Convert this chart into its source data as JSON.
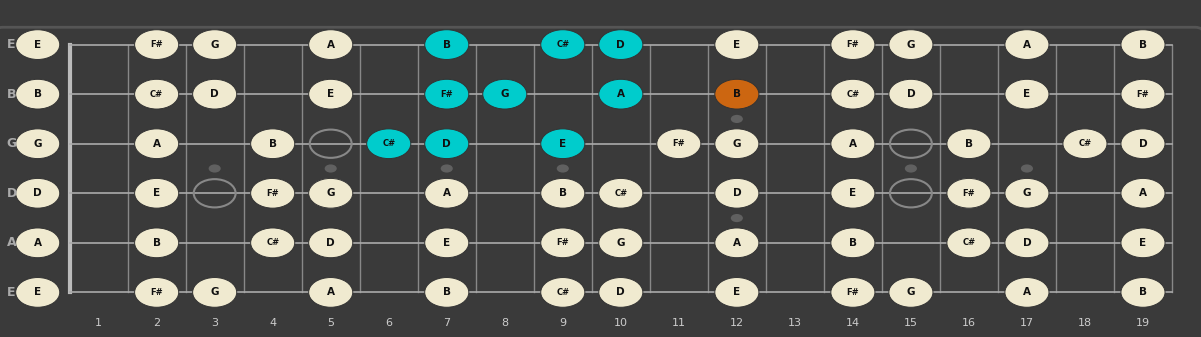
{
  "strings": [
    "E",
    "B",
    "G",
    "D",
    "A",
    "E"
  ],
  "num_frets": 19,
  "bg_color": "#3a3a3a",
  "fret_color": "#888888",
  "string_color": "#aaaaaa",
  "note_bg_ivory": "#f0ead0",
  "note_bg_cyan": "#00cccc",
  "note_bg_orange": "#cc6611",
  "note_text_dark": "#111111",
  "open_circle_color": "#888888",
  "fret_marker_positions": [
    3,
    5,
    7,
    9,
    12,
    15,
    17
  ],
  "fret_marker_double": [
    12
  ],
  "label_color": "#cccccc",
  "string_label_color": "#aaaaaa",
  "notes": [
    {
      "string": 0,
      "fret": 0,
      "label": "E",
      "color": "ivory"
    },
    {
      "string": 0,
      "fret": 2,
      "label": "F#",
      "color": "ivory"
    },
    {
      "string": 0,
      "fret": 3,
      "label": "G",
      "color": "ivory"
    },
    {
      "string": 0,
      "fret": 5,
      "label": "A",
      "color": "ivory"
    },
    {
      "string": 0,
      "fret": 7,
      "label": "B",
      "color": "cyan"
    },
    {
      "string": 0,
      "fret": 9,
      "label": "C#",
      "color": "cyan"
    },
    {
      "string": 0,
      "fret": 10,
      "label": "D",
      "color": "cyan"
    },
    {
      "string": 0,
      "fret": 12,
      "label": "E",
      "color": "ivory"
    },
    {
      "string": 0,
      "fret": 14,
      "label": "F#",
      "color": "ivory"
    },
    {
      "string": 0,
      "fret": 15,
      "label": "G",
      "color": "ivory"
    },
    {
      "string": 0,
      "fret": 17,
      "label": "A",
      "color": "ivory"
    },
    {
      "string": 0,
      "fret": 19,
      "label": "B",
      "color": "ivory"
    },
    {
      "string": 1,
      "fret": 0,
      "label": "B",
      "color": "ivory"
    },
    {
      "string": 1,
      "fret": 2,
      "label": "C#",
      "color": "ivory"
    },
    {
      "string": 1,
      "fret": 3,
      "label": "D",
      "color": "ivory"
    },
    {
      "string": 1,
      "fret": 5,
      "label": "E",
      "color": "ivory"
    },
    {
      "string": 1,
      "fret": 7,
      "label": "F#",
      "color": "cyan"
    },
    {
      "string": 1,
      "fret": 8,
      "label": "G",
      "color": "cyan"
    },
    {
      "string": 1,
      "fret": 10,
      "label": "A",
      "color": "cyan"
    },
    {
      "string": 1,
      "fret": 12,
      "label": "B",
      "color": "orange"
    },
    {
      "string": 1,
      "fret": 14,
      "label": "C#",
      "color": "ivory"
    },
    {
      "string": 1,
      "fret": 15,
      "label": "D",
      "color": "ivory"
    },
    {
      "string": 1,
      "fret": 17,
      "label": "E",
      "color": "ivory"
    },
    {
      "string": 1,
      "fret": 19,
      "label": "F#",
      "color": "ivory"
    },
    {
      "string": 2,
      "fret": 0,
      "label": "G",
      "color": "ivory"
    },
    {
      "string": 2,
      "fret": 2,
      "label": "A",
      "color": "ivory"
    },
    {
      "string": 2,
      "fret": 4,
      "label": "B",
      "color": "ivory"
    },
    {
      "string": 2,
      "fret": 6,
      "label": "C#",
      "color": "cyan"
    },
    {
      "string": 2,
      "fret": 7,
      "label": "D",
      "color": "cyan"
    },
    {
      "string": 2,
      "fret": 9,
      "label": "E",
      "color": "cyan"
    },
    {
      "string": 2,
      "fret": 11,
      "label": "F#",
      "color": "ivory"
    },
    {
      "string": 2,
      "fret": 12,
      "label": "G",
      "color": "ivory"
    },
    {
      "string": 2,
      "fret": 14,
      "label": "A",
      "color": "ivory"
    },
    {
      "string": 2,
      "fret": 16,
      "label": "B",
      "color": "ivory"
    },
    {
      "string": 2,
      "fret": 18,
      "label": "C#",
      "color": "ivory"
    },
    {
      "string": 2,
      "fret": 19,
      "label": "D",
      "color": "ivory"
    },
    {
      "string": 3,
      "fret": 0,
      "label": "D",
      "color": "ivory"
    },
    {
      "string": 3,
      "fret": 2,
      "label": "E",
      "color": "ivory"
    },
    {
      "string": 3,
      "fret": 4,
      "label": "F#",
      "color": "ivory"
    },
    {
      "string": 3,
      "fret": 5,
      "label": "G",
      "color": "ivory"
    },
    {
      "string": 3,
      "fret": 7,
      "label": "A",
      "color": "ivory"
    },
    {
      "string": 3,
      "fret": 9,
      "label": "B",
      "color": "ivory"
    },
    {
      "string": 3,
      "fret": 10,
      "label": "C#",
      "color": "ivory"
    },
    {
      "string": 3,
      "fret": 12,
      "label": "D",
      "color": "ivory"
    },
    {
      "string": 3,
      "fret": 14,
      "label": "E",
      "color": "ivory"
    },
    {
      "string": 3,
      "fret": 16,
      "label": "F#",
      "color": "ivory"
    },
    {
      "string": 3,
      "fret": 17,
      "label": "G",
      "color": "ivory"
    },
    {
      "string": 3,
      "fret": 19,
      "label": "A",
      "color": "ivory"
    },
    {
      "string": 4,
      "fret": 0,
      "label": "A",
      "color": "ivory"
    },
    {
      "string": 4,
      "fret": 2,
      "label": "B",
      "color": "ivory"
    },
    {
      "string": 4,
      "fret": 4,
      "label": "C#",
      "color": "ivory"
    },
    {
      "string": 4,
      "fret": 5,
      "label": "D",
      "color": "ivory"
    },
    {
      "string": 4,
      "fret": 7,
      "label": "E",
      "color": "ivory"
    },
    {
      "string": 4,
      "fret": 9,
      "label": "F#",
      "color": "ivory"
    },
    {
      "string": 4,
      "fret": 10,
      "label": "G",
      "color": "ivory"
    },
    {
      "string": 4,
      "fret": 12,
      "label": "A",
      "color": "ivory"
    },
    {
      "string": 4,
      "fret": 14,
      "label": "B",
      "color": "ivory"
    },
    {
      "string": 4,
      "fret": 16,
      "label": "C#",
      "color": "ivory"
    },
    {
      "string": 4,
      "fret": 17,
      "label": "D",
      "color": "ivory"
    },
    {
      "string": 4,
      "fret": 19,
      "label": "E",
      "color": "ivory"
    },
    {
      "string": 5,
      "fret": 0,
      "label": "E",
      "color": "ivory"
    },
    {
      "string": 5,
      "fret": 2,
      "label": "F#",
      "color": "ivory"
    },
    {
      "string": 5,
      "fret": 3,
      "label": "G",
      "color": "ivory"
    },
    {
      "string": 5,
      "fret": 5,
      "label": "A",
      "color": "ivory"
    },
    {
      "string": 5,
      "fret": 7,
      "label": "B",
      "color": "ivory"
    },
    {
      "string": 5,
      "fret": 9,
      "label": "C#",
      "color": "ivory"
    },
    {
      "string": 5,
      "fret": 10,
      "label": "D",
      "color": "ivory"
    },
    {
      "string": 5,
      "fret": 12,
      "label": "E",
      "color": "ivory"
    },
    {
      "string": 5,
      "fret": 14,
      "label": "F#",
      "color": "ivory"
    },
    {
      "string": 5,
      "fret": 15,
      "label": "G",
      "color": "ivory"
    },
    {
      "string": 5,
      "fret": 17,
      "label": "A",
      "color": "ivory"
    },
    {
      "string": 5,
      "fret": 19,
      "label": "B",
      "color": "ivory"
    }
  ],
  "open_circles": [
    {
      "string": 3,
      "fret": 3
    },
    {
      "string": 3,
      "fret": 5
    },
    {
      "string": 3,
      "fret": 15
    },
    {
      "string": 3,
      "fret": 16
    },
    {
      "string": 2,
      "fret": 5
    },
    {
      "string": 2,
      "fret": 15
    }
  ]
}
